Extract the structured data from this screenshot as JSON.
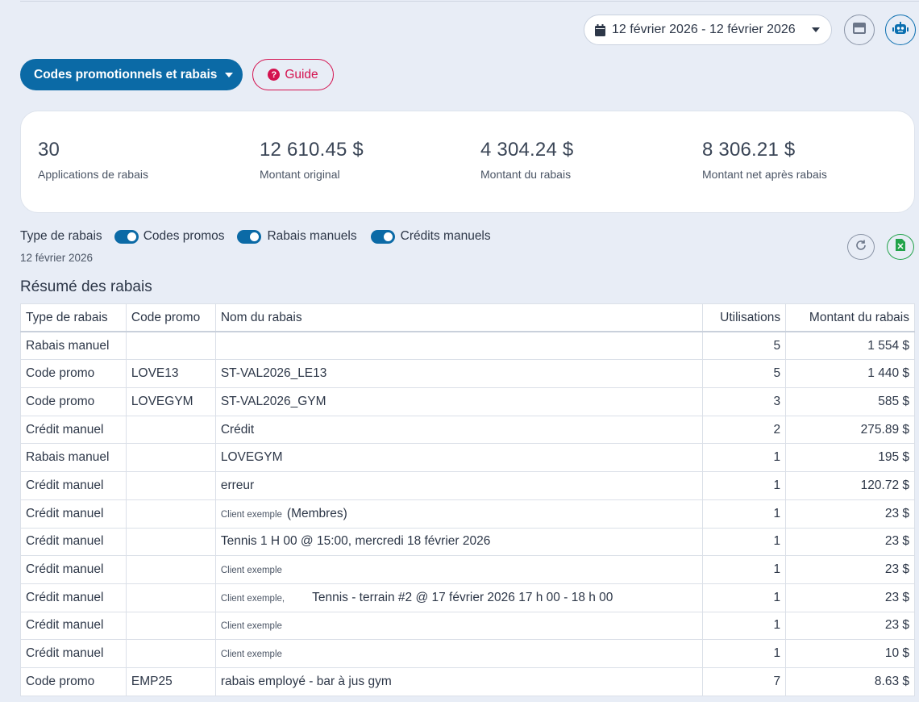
{
  "header": {
    "date_range": "12 février 2026 - 12 février 2026"
  },
  "toolbar": {
    "menu_label": "Codes promotionnels et rabais",
    "guide_label": "Guide"
  },
  "stats": [
    {
      "value": "30",
      "label": "Applications de rabais"
    },
    {
      "value": "12 610.45 $",
      "label": "Montant original"
    },
    {
      "value": "4 304.24 $",
      "label": "Montant du rabais"
    },
    {
      "value": "8 306.21 $",
      "label": "Montant net après rabais"
    }
  ],
  "filters": {
    "label": "Type de rabais",
    "toggles": [
      {
        "label": "Codes promos",
        "on": true
      },
      {
        "label": "Rabais manuels",
        "on": true
      },
      {
        "label": "Crédits manuels",
        "on": true
      }
    ],
    "date": "12 février 2026"
  },
  "summary": {
    "title": "Résumé des rabais",
    "columns": [
      "Type de rabais",
      "Code promo",
      "Nom du rabais",
      "Utilisations",
      "Montant du rabais"
    ],
    "rows": [
      {
        "type": "Rabais manuel",
        "code": "",
        "name_small": "",
        "name": "",
        "uses": "5",
        "amount": "1 554 $"
      },
      {
        "type": "Code promo",
        "code": "LOVE13",
        "name_small": "",
        "name": "ST-VAL2026_LE13",
        "uses": "5",
        "amount": "1 440 $"
      },
      {
        "type": "Code promo",
        "code": "LOVEGYM",
        "name_small": "",
        "name": "ST-VAL2026_GYM",
        "uses": "3",
        "amount": "585 $"
      },
      {
        "type": "Crédit manuel",
        "code": "",
        "name_small": "",
        "name": "Crédit",
        "uses": "2",
        "amount": "275.89 $"
      },
      {
        "type": "Rabais manuel",
        "code": "",
        "name_small": "",
        "name": "LOVEGYM",
        "uses": "1",
        "amount": "195 $"
      },
      {
        "type": "Crédit manuel",
        "code": "",
        "name_small": "",
        "name": "erreur",
        "uses": "1",
        "amount": "120.72 $"
      },
      {
        "type": "Crédit manuel",
        "code": "",
        "name_small": "Client exemple",
        "name": "(Membres)",
        "uses": "1",
        "amount": "23 $"
      },
      {
        "type": "Crédit manuel",
        "code": "",
        "name_small": "",
        "name": "Tennis 1 H 00 @ 15:00, mercredi 18 février 2026",
        "uses": "1",
        "amount": "23 $"
      },
      {
        "type": "Crédit manuel",
        "code": "",
        "name_small": "Client exemple",
        "name": "",
        "uses": "1",
        "amount": "23 $"
      },
      {
        "type": "Crédit manuel",
        "code": "",
        "name_small": "Client exemple,",
        "name": "Tennis - terrain #2 @ 17 février 2026 17 h 00 - 18 h 00",
        "uses": "1",
        "amount": "23 $"
      },
      {
        "type": "Crédit manuel",
        "code": "",
        "name_small": "Client exemple",
        "name": "",
        "uses": "1",
        "amount": "23 $"
      },
      {
        "type": "Crédit manuel",
        "code": "",
        "name_small": "Client exemple",
        "name": "",
        "uses": "1",
        "amount": "10 $"
      },
      {
        "type": "Code promo",
        "code": "EMP25",
        "name_small": "",
        "name": "rabais employé - bar à jus gym",
        "uses": "7",
        "amount": "8.63 $"
      }
    ]
  }
}
